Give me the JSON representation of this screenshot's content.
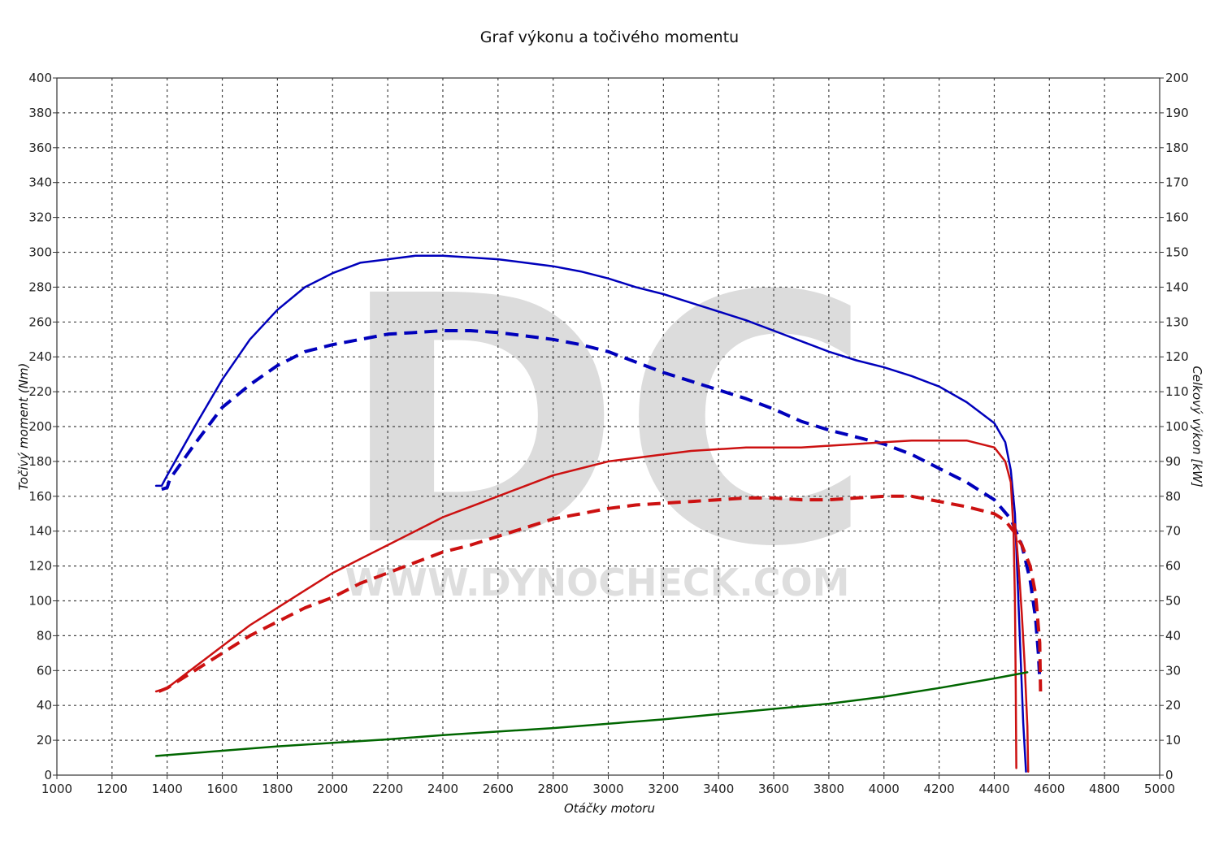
{
  "chart_data": {
    "type": "line",
    "title": "Graf výkonu a točivého momentu",
    "xlabel": "Otáčky motoru",
    "ylabel_left": "Točivý moment (Nm)",
    "ylabel_right": "Celkový výkon [kW]",
    "xlim": [
      1000,
      5000
    ],
    "ylim_left": [
      0,
      400
    ],
    "ylim_right": [
      0,
      200
    ],
    "x_ticks": [
      1000,
      1200,
      1400,
      1600,
      1800,
      2000,
      2200,
      2400,
      2600,
      2800,
      3000,
      3200,
      3400,
      3600,
      3800,
      4000,
      4200,
      4400,
      4600,
      4800,
      5000
    ],
    "y_left_ticks": [
      0,
      20,
      40,
      60,
      80,
      100,
      120,
      140,
      160,
      180,
      200,
      220,
      240,
      260,
      280,
      300,
      320,
      340,
      360,
      380,
      400
    ],
    "y_right_ticks": [
      0,
      10,
      20,
      30,
      40,
      50,
      60,
      70,
      80,
      90,
      100,
      110,
      120,
      130,
      140,
      150,
      160,
      170,
      180,
      190,
      200
    ],
    "grid": true,
    "watermark": {
      "letters": "DC",
      "url": "WWW.DYNOCHECK.COM"
    },
    "series": [
      {
        "axis": "left",
        "color": "#0000bb",
        "dash": "solid",
        "width": 2.5,
        "points": [
          [
            1360,
            166
          ],
          [
            1380,
            166
          ],
          [
            1400,
            172
          ],
          [
            1500,
            200
          ],
          [
            1600,
            227
          ],
          [
            1700,
            250
          ],
          [
            1800,
            267
          ],
          [
            1900,
            280
          ],
          [
            2000,
            288
          ],
          [
            2100,
            294
          ],
          [
            2200,
            296
          ],
          [
            2300,
            298
          ],
          [
            2400,
            298
          ],
          [
            2500,
            297
          ],
          [
            2600,
            296
          ],
          [
            2700,
            294
          ],
          [
            2800,
            292
          ],
          [
            2900,
            289
          ],
          [
            3000,
            285
          ],
          [
            3100,
            280
          ],
          [
            3200,
            276
          ],
          [
            3300,
            271
          ],
          [
            3400,
            266
          ],
          [
            3500,
            261
          ],
          [
            3600,
            255
          ],
          [
            3700,
            249
          ],
          [
            3800,
            243
          ],
          [
            3900,
            238
          ],
          [
            4000,
            234
          ],
          [
            4100,
            229
          ],
          [
            4200,
            223
          ],
          [
            4300,
            214
          ],
          [
            4400,
            202
          ],
          [
            4440,
            191
          ],
          [
            4460,
            175
          ],
          [
            4475,
            150
          ],
          [
            4485,
            110
          ],
          [
            4495,
            70
          ],
          [
            4505,
            30
          ],
          [
            4515,
            2
          ]
        ]
      },
      {
        "axis": "left",
        "color": "#0000bb",
        "dash": "dashed",
        "width": 4,
        "points": [
          [
            1380,
            164
          ],
          [
            1400,
            165
          ],
          [
            1410,
            170
          ],
          [
            1500,
            190
          ],
          [
            1600,
            211
          ],
          [
            1700,
            224
          ],
          [
            1800,
            235
          ],
          [
            1900,
            243
          ],
          [
            2000,
            247
          ],
          [
            2100,
            250
          ],
          [
            2200,
            253
          ],
          [
            2300,
            254
          ],
          [
            2400,
            255
          ],
          [
            2500,
            255
          ],
          [
            2600,
            254
          ],
          [
            2700,
            252
          ],
          [
            2800,
            250
          ],
          [
            2900,
            247
          ],
          [
            3000,
            243
          ],
          [
            3100,
            237
          ],
          [
            3200,
            231
          ],
          [
            3300,
            226
          ],
          [
            3400,
            221
          ],
          [
            3500,
            216
          ],
          [
            3600,
            210
          ],
          [
            3700,
            203
          ],
          [
            3800,
            198
          ],
          [
            3900,
            194
          ],
          [
            4000,
            190
          ],
          [
            4100,
            184
          ],
          [
            4200,
            176
          ],
          [
            4300,
            168
          ],
          [
            4400,
            158
          ],
          [
            4460,
            147
          ],
          [
            4500,
            132
          ],
          [
            4530,
            112
          ],
          [
            4550,
            90
          ],
          [
            4560,
            70
          ],
          [
            4565,
            55
          ]
        ]
      },
      {
        "axis": "right",
        "color": "#cc1111",
        "dash": "solid",
        "width": 2.5,
        "points": [
          [
            1360,
            24
          ],
          [
            1400,
            25
          ],
          [
            1500,
            31
          ],
          [
            1600,
            37
          ],
          [
            1700,
            43
          ],
          [
            1800,
            48
          ],
          [
            1900,
            53
          ],
          [
            2000,
            58
          ],
          [
            2100,
            62
          ],
          [
            2200,
            66
          ],
          [
            2300,
            70
          ],
          [
            2400,
            74
          ],
          [
            2500,
            77
          ],
          [
            2600,
            80
          ],
          [
            2700,
            83
          ],
          [
            2800,
            86
          ],
          [
            2900,
            88
          ],
          [
            3000,
            90
          ],
          [
            3100,
            91
          ],
          [
            3200,
            92
          ],
          [
            3300,
            93
          ],
          [
            3400,
            93.5
          ],
          [
            3500,
            94
          ],
          [
            3600,
            94
          ],
          [
            3700,
            94
          ],
          [
            3800,
            94.5
          ],
          [
            3900,
            95
          ],
          [
            4000,
            95.5
          ],
          [
            4100,
            96
          ],
          [
            4200,
            96
          ],
          [
            4300,
            96
          ],
          [
            4400,
            94
          ],
          [
            4440,
            90
          ],
          [
            4460,
            84
          ],
          [
            4470,
            70
          ],
          [
            4475,
            50
          ],
          [
            4478,
            25
          ],
          [
            4480,
            2
          ]
        ]
      },
      {
        "axis": "right",
        "color": "#cc1111",
        "dash": "dashed",
        "width": 4,
        "points": [
          [
            1370,
            24
          ],
          [
            1400,
            25
          ],
          [
            1500,
            30
          ],
          [
            1600,
            35
          ],
          [
            1700,
            40
          ],
          [
            1800,
            44
          ],
          [
            1900,
            48
          ],
          [
            2000,
            51
          ],
          [
            2100,
            55
          ],
          [
            2200,
            58
          ],
          [
            2300,
            61
          ],
          [
            2400,
            64
          ],
          [
            2500,
            66
          ],
          [
            2600,
            68.5
          ],
          [
            2700,
            71
          ],
          [
            2800,
            73.5
          ],
          [
            2900,
            75
          ],
          [
            3000,
            76.5
          ],
          [
            3100,
            77.5
          ],
          [
            3200,
            78
          ],
          [
            3300,
            78.5
          ],
          [
            3400,
            79
          ],
          [
            3500,
            79.5
          ],
          [
            3600,
            79.5
          ],
          [
            3700,
            79
          ],
          [
            3800,
            79
          ],
          [
            3900,
            79.5
          ],
          [
            4000,
            80
          ],
          [
            4100,
            80
          ],
          [
            4200,
            78.5
          ],
          [
            4300,
            77
          ],
          [
            4400,
            75
          ],
          [
            4440,
            73
          ],
          [
            4470,
            70
          ],
          [
            4500,
            66
          ],
          [
            4530,
            60
          ],
          [
            4550,
            52
          ],
          [
            4565,
            38
          ],
          [
            4568,
            24
          ]
        ]
      },
      {
        "axis": "right",
        "color": "#cc1111",
        "dash": "solid",
        "width": 2.5,
        "points": [
          [
            4475,
            72
          ],
          [
            4480,
            68
          ],
          [
            4490,
            58
          ],
          [
            4500,
            46
          ],
          [
            4510,
            32
          ],
          [
            4520,
            14
          ],
          [
            4523,
            1
          ]
        ]
      },
      {
        "axis": "left",
        "color": "#006600",
        "dash": "solid",
        "width": 2.5,
        "points": [
          [
            1360,
            11
          ],
          [
            1600,
            14
          ],
          [
            1800,
            16.5
          ],
          [
            2000,
            18.5
          ],
          [
            2200,
            20.5
          ],
          [
            2400,
            23
          ],
          [
            2600,
            25
          ],
          [
            2800,
            27
          ],
          [
            3000,
            29.5
          ],
          [
            3200,
            32
          ],
          [
            3400,
            35
          ],
          [
            3600,
            38
          ],
          [
            3800,
            41
          ],
          [
            4000,
            45
          ],
          [
            4200,
            50
          ],
          [
            4400,
            55.5
          ],
          [
            4520,
            59
          ]
        ]
      }
    ]
  }
}
